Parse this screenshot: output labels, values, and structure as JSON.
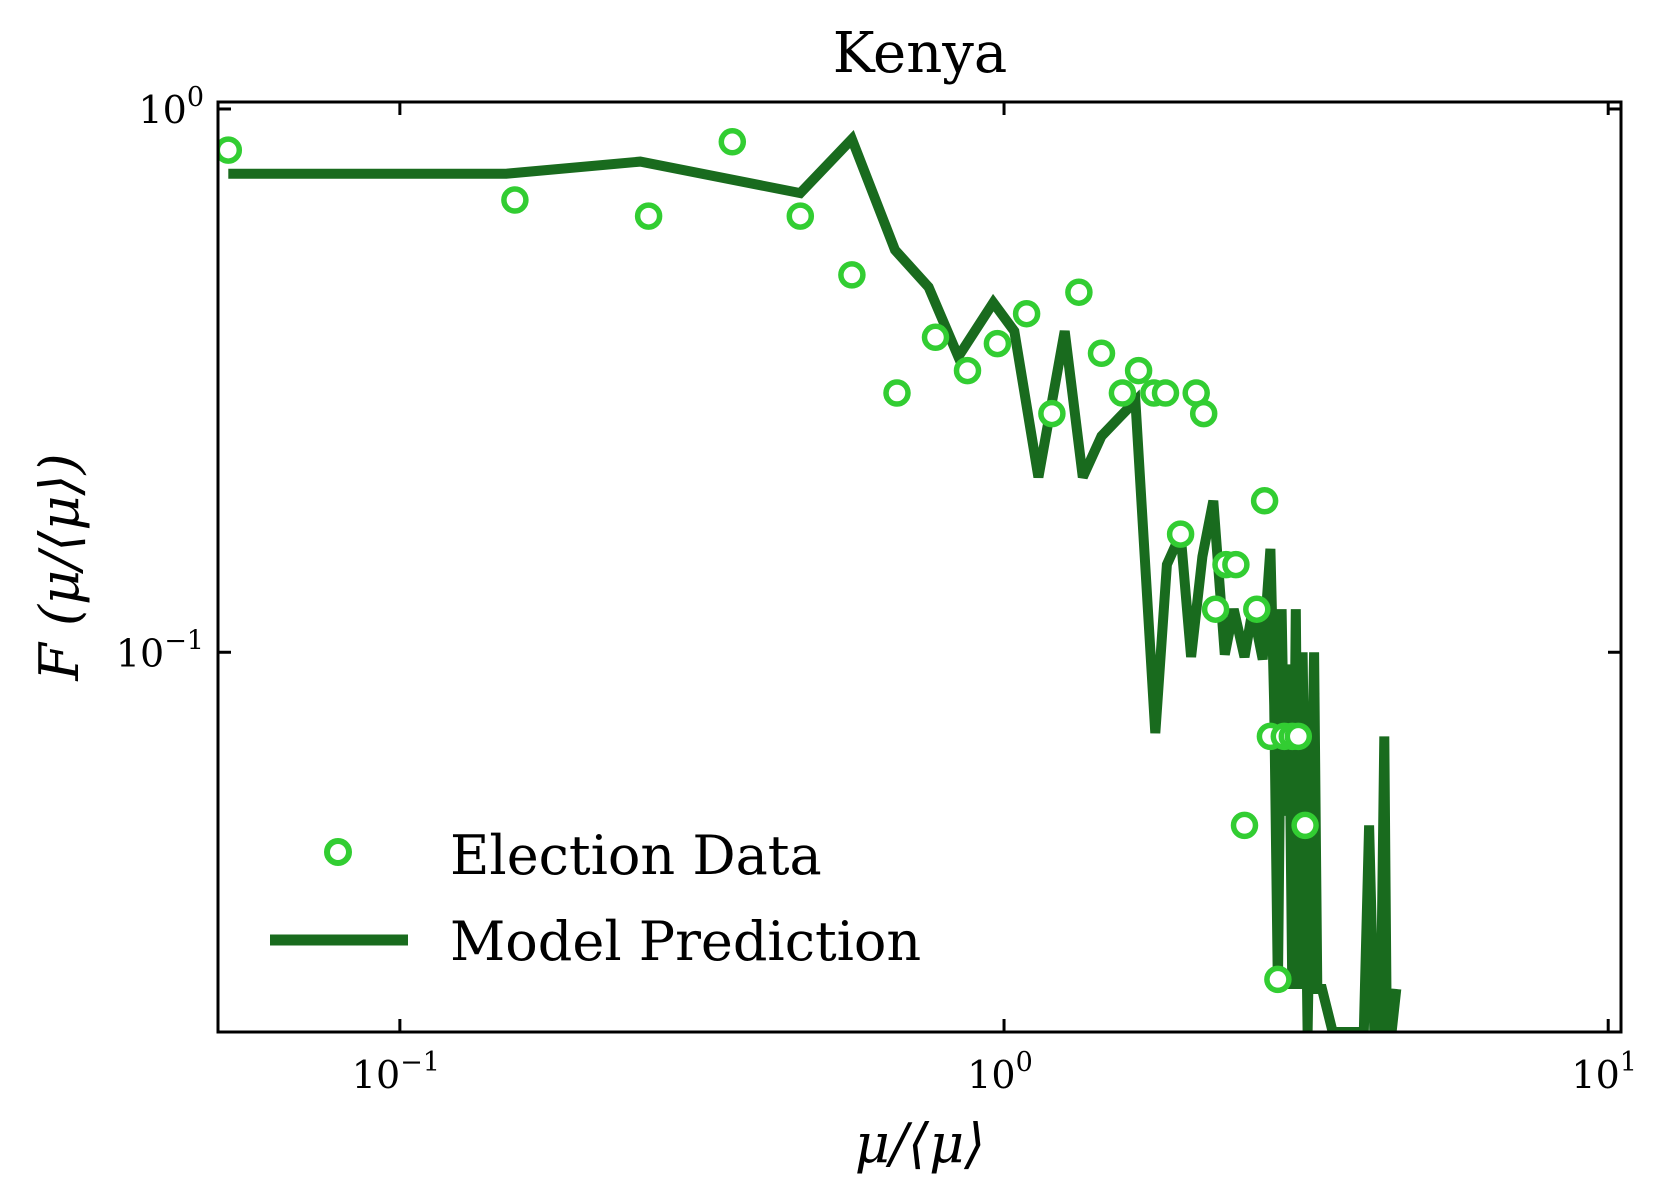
{
  "chart_data": {
    "type": "line",
    "title": "Kenya",
    "xlabel": "μ/⟨μ⟩",
    "ylabel": "F (μ/⟨μ⟩)",
    "xscale": "log",
    "yscale": "log",
    "xlim": [
      0.05,
      10.5
    ],
    "ylim": [
      0.02,
      1.03
    ],
    "x_ticks": [
      {
        "value": 0.1,
        "base": "10",
        "exp": "−1"
      },
      {
        "value": 1,
        "base": "10",
        "exp": "0"
      },
      {
        "value": 10,
        "base": "10",
        "exp": "1"
      }
    ],
    "y_ticks": [
      {
        "value": 1,
        "base": "10",
        "exp": "0"
      },
      {
        "value": 0.1,
        "base": "10",
        "exp": "−1"
      }
    ],
    "legend_position": "lower-left",
    "series": [
      {
        "name": "Election Data",
        "kind": "scatter",
        "color": "#32cd32",
        "x": [
          0.052,
          0.155,
          0.258,
          0.355,
          0.46,
          0.56,
          0.665,
          0.77,
          0.87,
          0.975,
          1.09,
          1.2,
          1.33,
          1.45,
          1.57,
          1.67,
          1.77,
          1.85,
          1.96,
          2.08,
          2.14,
          2.24,
          2.33,
          2.42,
          2.5,
          2.62,
          2.7,
          2.76,
          2.84,
          2.91,
          3.0,
          3.07,
          3.15
        ],
        "y": [
          0.84,
          0.68,
          0.635,
          0.87,
          0.635,
          0.495,
          0.3,
          0.38,
          0.33,
          0.37,
          0.42,
          0.275,
          0.46,
          0.355,
          0.3,
          0.33,
          0.3,
          0.3,
          0.165,
          0.3,
          0.275,
          0.12,
          0.145,
          0.145,
          0.048,
          0.12,
          0.19,
          0.07,
          0.025,
          0.07,
          0.07,
          0.07,
          0.048
        ]
      },
      {
        "name": "Model Prediction",
        "kind": "line",
        "color": "#196b1e",
        "x": [
          0.052,
          0.15,
          0.25,
          0.46,
          0.56,
          0.66,
          0.75,
          0.84,
          0.96,
          1.04,
          1.14,
          1.26,
          1.35,
          1.45,
          1.55,
          1.65,
          1.78,
          1.86,
          1.96,
          2.04,
          2.13,
          2.22,
          2.32,
          2.4,
          2.5,
          2.58,
          2.68,
          2.76,
          2.8,
          2.84,
          2.88,
          2.92,
          2.96,
          3.0,
          3.04,
          3.08,
          3.12,
          3.18,
          3.26,
          3.3,
          3.36,
          3.5,
          3.62,
          3.74,
          3.84,
          3.94,
          4.02,
          4.1,
          4.14,
          4.2,
          4.26,
          4.3,
          4.38,
          4.46
        ],
        "y": [
          0.76,
          0.76,
          0.8,
          0.7,
          0.88,
          0.55,
          0.47,
          0.35,
          0.44,
          0.39,
          0.21,
          0.39,
          0.21,
          0.25,
          0.27,
          0.29,
          0.071,
          0.145,
          0.165,
          0.098,
          0.15,
          0.19,
          0.099,
          0.12,
          0.098,
          0.12,
          0.097,
          0.155,
          0.08,
          0.024,
          0.12,
          0.05,
          0.095,
          0.024,
          0.12,
          0.024,
          0.1,
          0.02,
          0.1,
          0.024,
          0.024,
          0.02,
          0.02,
          0.02,
          0.02,
          0.02,
          0.048,
          0.02,
          0.02,
          0.02,
          0.07,
          0.02,
          0.02,
          0.024
        ]
      }
    ]
  }
}
